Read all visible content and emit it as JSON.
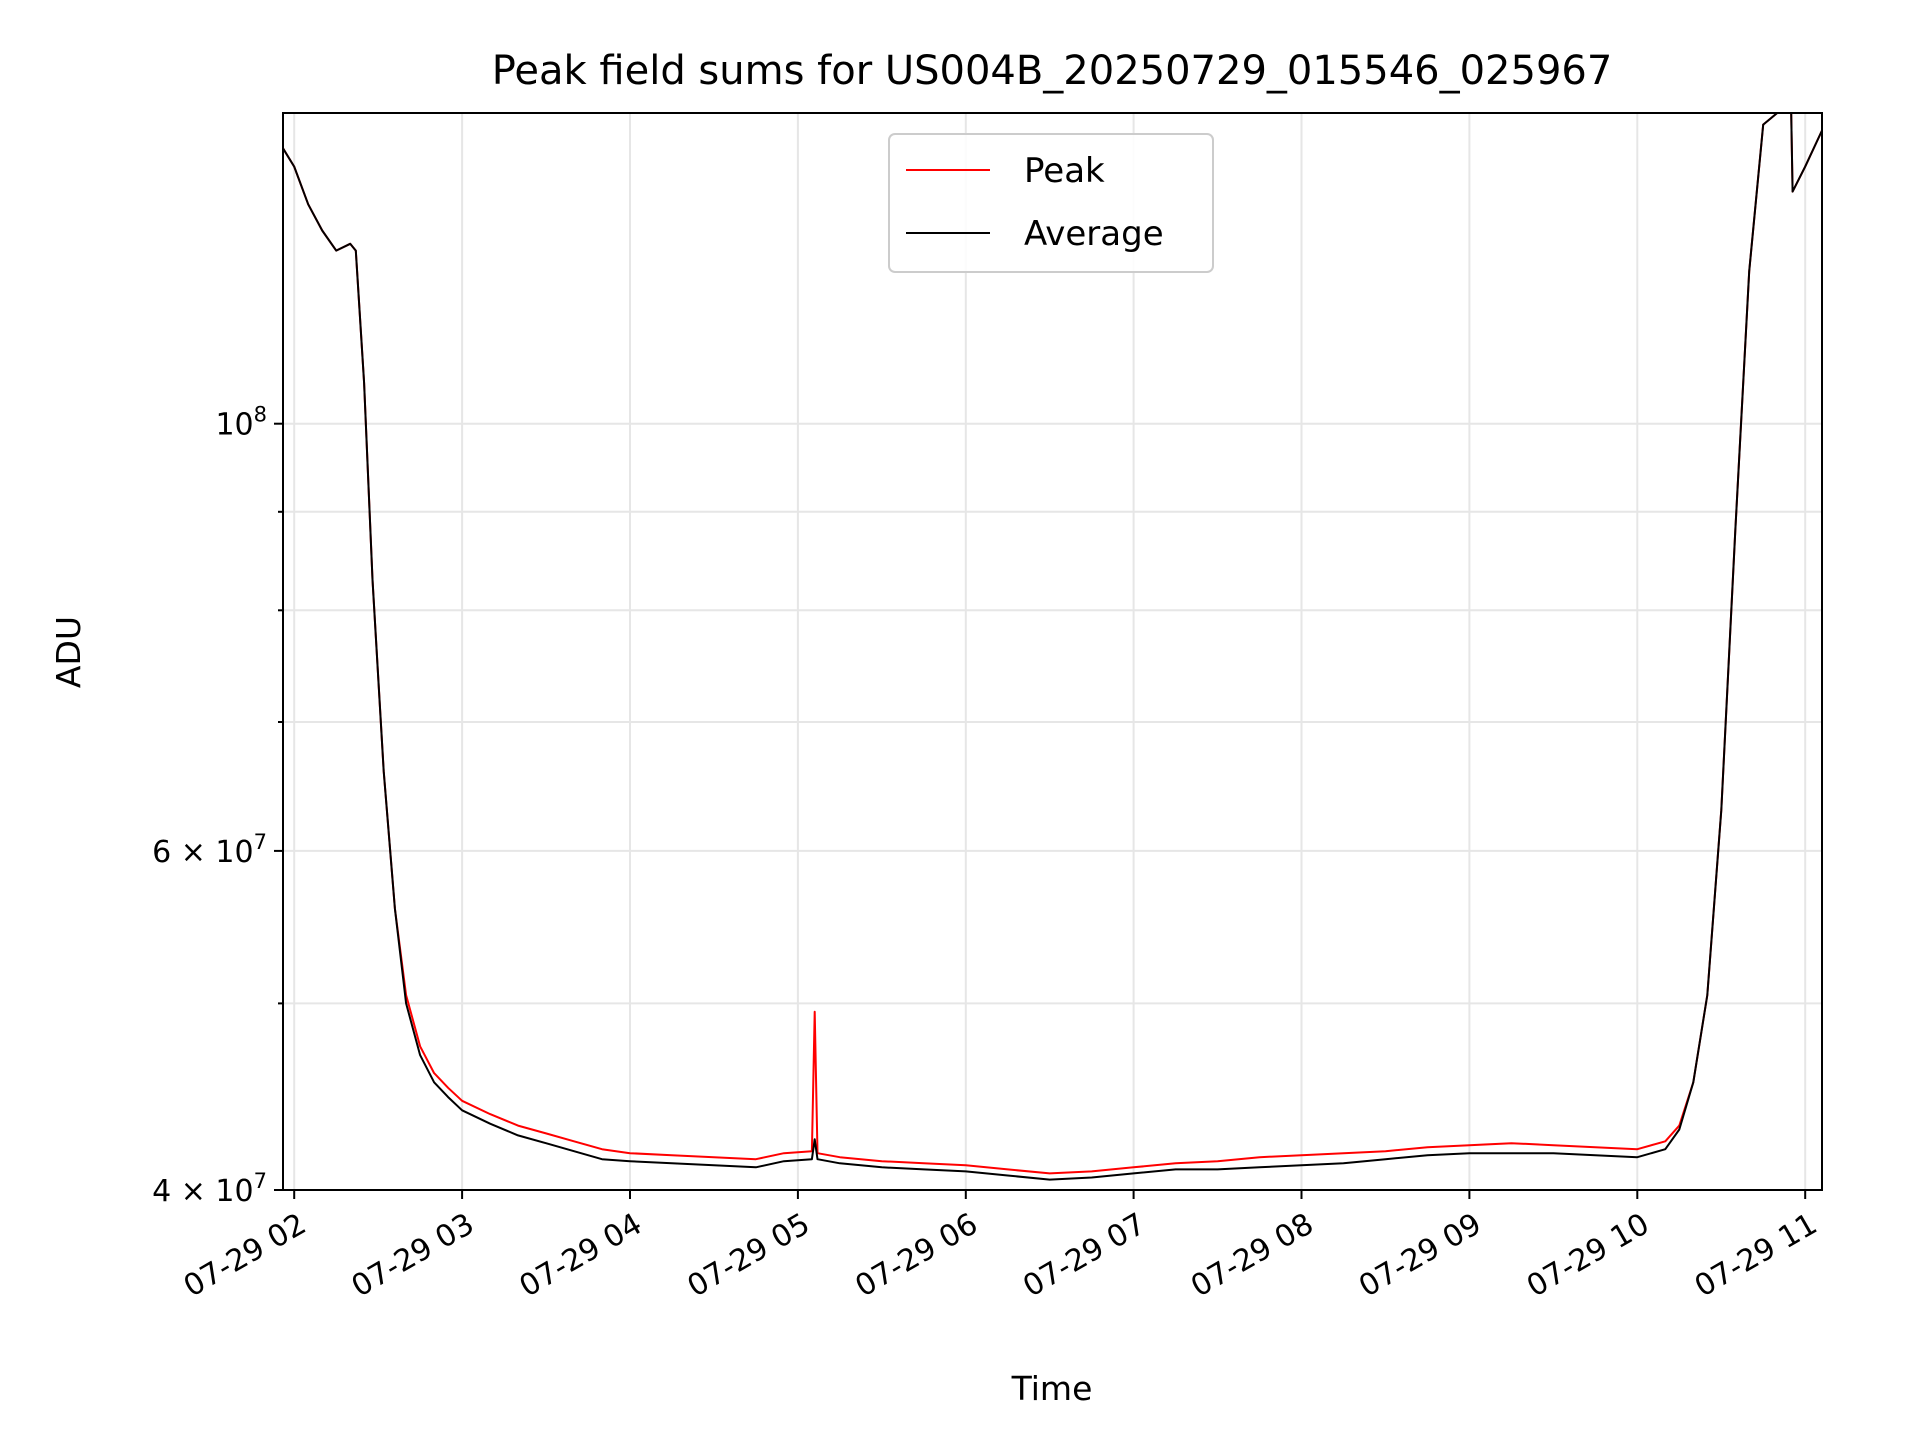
{
  "chart_data": {
    "type": "line",
    "title": "Peak field sums for US004B_20250729_015546_025967",
    "xlabel": "Time",
    "ylabel": "ADU",
    "y_scale": "log",
    "ylim": [
      40000000,
      145000000
    ],
    "xlim": [
      "2025-07-29 01:56",
      "2025-07-29 11:06"
    ],
    "grid": true,
    "legend_position": "top-center",
    "x_ticks": [
      {
        "t": "2025-07-29 02:00",
        "label": "07-29 02"
      },
      {
        "t": "2025-07-29 03:00",
        "label": "07-29 03"
      },
      {
        "t": "2025-07-29 04:00",
        "label": "07-29 04"
      },
      {
        "t": "2025-07-29 05:00",
        "label": "07-29 05"
      },
      {
        "t": "2025-07-29 06:00",
        "label": "07-29 06"
      },
      {
        "t": "2025-07-29 07:00",
        "label": "07-29 07"
      },
      {
        "t": "2025-07-29 08:00",
        "label": "07-29 08"
      },
      {
        "t": "2025-07-29 09:00",
        "label": "07-29 09"
      },
      {
        "t": "2025-07-29 10:00",
        "label": "07-29 10"
      },
      {
        "t": "2025-07-29 11:00",
        "label": "07-29 11"
      }
    ],
    "y_ticks": [
      {
        "value": 40000000,
        "label_base": "4 × 10",
        "label_exp": "7"
      },
      {
        "value": 60000000,
        "label_base": "6 × 10",
        "label_exp": "7"
      },
      {
        "value": 100000000,
        "label_base": "10",
        "label_exp": "8"
      }
    ],
    "y_minor_ticks": [
      50000000,
      70000000,
      80000000,
      90000000
    ],
    "series": [
      {
        "name": "Peak",
        "color": "#ff0000",
        "x": [
          "2025-07-29 01:56",
          "2025-07-29 02:00",
          "2025-07-29 02:05",
          "2025-07-29 02:10",
          "2025-07-29 02:15",
          "2025-07-29 02:20",
          "2025-07-29 02:22",
          "2025-07-29 02:25",
          "2025-07-29 02:28",
          "2025-07-29 02:32",
          "2025-07-29 02:36",
          "2025-07-29 02:40",
          "2025-07-29 02:45",
          "2025-07-29 02:50",
          "2025-07-29 02:55",
          "2025-07-29 03:00",
          "2025-07-29 03:10",
          "2025-07-29 03:20",
          "2025-07-29 03:30",
          "2025-07-29 03:40",
          "2025-07-29 03:50",
          "2025-07-29 04:00",
          "2025-07-29 04:15",
          "2025-07-29 04:30",
          "2025-07-29 04:45",
          "2025-07-29 04:55",
          "2025-07-29 05:05",
          "2025-07-29 05:06",
          "2025-07-29 05:07",
          "2025-07-29 05:15",
          "2025-07-29 05:30",
          "2025-07-29 05:45",
          "2025-07-29 06:00",
          "2025-07-29 06:15",
          "2025-07-29 06:30",
          "2025-07-29 06:45",
          "2025-07-29 07:00",
          "2025-07-29 07:15",
          "2025-07-29 07:30",
          "2025-07-29 07:45",
          "2025-07-29 08:00",
          "2025-07-29 08:15",
          "2025-07-29 08:30",
          "2025-07-29 08:45",
          "2025-07-29 09:00",
          "2025-07-29 09:15",
          "2025-07-29 09:30",
          "2025-07-29 09:45",
          "2025-07-29 10:00",
          "2025-07-29 10:10",
          "2025-07-29 10:15",
          "2025-07-29 10:20",
          "2025-07-29 10:25",
          "2025-07-29 10:30",
          "2025-07-29 10:35",
          "2025-07-29 10:40",
          "2025-07-29 10:45",
          "2025-07-29 10:50",
          "2025-07-29 10:55",
          "2025-07-29 10:55:30",
          "2025-07-29 11:00",
          "2025-07-29 11:06"
        ],
        "y": [
          139000000,
          136000000,
          130000000,
          126000000,
          123000000,
          124000000,
          123000000,
          105000000,
          83000000,
          66000000,
          56000000,
          50500000,
          47500000,
          46000000,
          45200000,
          44500000,
          43800000,
          43200000,
          42800000,
          42400000,
          42000000,
          41800000,
          41700000,
          41600000,
          41500000,
          41800000,
          41900000,
          49500000,
          41800000,
          41600000,
          41400000,
          41300000,
          41200000,
          41000000,
          40800000,
          40900000,
          41100000,
          41300000,
          41400000,
          41600000,
          41700000,
          41800000,
          41900000,
          42100000,
          42200000,
          42300000,
          42200000,
          42100000,
          42000000,
          42400000,
          43200000,
          45500000,
          50500000,
          63000000,
          88000000,
          120000000,
          143000000,
          145000000,
          145000000,
          132000000,
          136000000,
          142000000
        ]
      },
      {
        "name": "Average",
        "color": "#000000",
        "x": [
          "2025-07-29 01:56",
          "2025-07-29 02:00",
          "2025-07-29 02:05",
          "2025-07-29 02:10",
          "2025-07-29 02:15",
          "2025-07-29 02:20",
          "2025-07-29 02:22",
          "2025-07-29 02:25",
          "2025-07-29 02:28",
          "2025-07-29 02:32",
          "2025-07-29 02:36",
          "2025-07-29 02:40",
          "2025-07-29 02:45",
          "2025-07-29 02:50",
          "2025-07-29 02:55",
          "2025-07-29 03:00",
          "2025-07-29 03:10",
          "2025-07-29 03:20",
          "2025-07-29 03:30",
          "2025-07-29 03:40",
          "2025-07-29 03:50",
          "2025-07-29 04:00",
          "2025-07-29 04:15",
          "2025-07-29 04:30",
          "2025-07-29 04:45",
          "2025-07-29 04:55",
          "2025-07-29 05:05",
          "2025-07-29 05:06",
          "2025-07-29 05:07",
          "2025-07-29 05:15",
          "2025-07-29 05:30",
          "2025-07-29 05:45",
          "2025-07-29 06:00",
          "2025-07-29 06:15",
          "2025-07-29 06:30",
          "2025-07-29 06:45",
          "2025-07-29 07:00",
          "2025-07-29 07:15",
          "2025-07-29 07:30",
          "2025-07-29 07:45",
          "2025-07-29 08:00",
          "2025-07-29 08:15",
          "2025-07-29 08:30",
          "2025-07-29 08:45",
          "2025-07-29 09:00",
          "2025-07-29 09:15",
          "2025-07-29 09:30",
          "2025-07-29 09:45",
          "2025-07-29 10:00",
          "2025-07-29 10:10",
          "2025-07-29 10:15",
          "2025-07-29 10:20",
          "2025-07-29 10:25",
          "2025-07-29 10:30",
          "2025-07-29 10:35",
          "2025-07-29 10:40",
          "2025-07-29 10:45",
          "2025-07-29 10:50",
          "2025-07-29 10:55",
          "2025-07-29 10:55:30",
          "2025-07-29 11:00",
          "2025-07-29 11:06"
        ],
        "y": [
          139000000,
          136000000,
          130000000,
          126000000,
          123000000,
          124000000,
          123000000,
          105000000,
          83000000,
          66000000,
          56000000,
          50000000,
          47000000,
          45500000,
          44700000,
          44000000,
          43300000,
          42700000,
          42300000,
          41900000,
          41500000,
          41400000,
          41300000,
          41200000,
          41100000,
          41400000,
          41500000,
          42500000,
          41500000,
          41300000,
          41100000,
          41000000,
          40900000,
          40700000,
          40500000,
          40600000,
          40800000,
          41000000,
          41000000,
          41100000,
          41200000,
          41300000,
          41500000,
          41700000,
          41800000,
          41800000,
          41800000,
          41700000,
          41600000,
          42000000,
          43000000,
          45500000,
          50500000,
          63000000,
          88000000,
          120000000,
          143000000,
          145000000,
          145000000,
          132000000,
          136000000,
          142000000
        ]
      }
    ]
  }
}
